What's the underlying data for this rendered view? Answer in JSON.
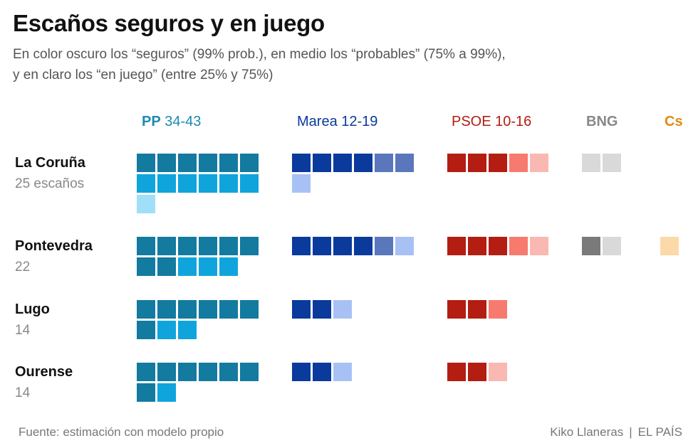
{
  "title": "Escaños seguros y en juego",
  "subtitle": {
    "line1": "En color oscuro los “seguros” (99% prob.), en medio los “probables” (75% a 99%),",
    "line2": "y en claro los “en juego” (entre 25% y 75%)"
  },
  "parties": [
    {
      "key": "pp",
      "name": "PP",
      "range": "34-43",
      "color": "#1e8bb0",
      "shades": {
        "seguro": "#137aa0",
        "probable": "#0fa5dc",
        "en_juego": "#9fdff8"
      }
    },
    {
      "key": "marea",
      "name": "Marea",
      "range": "12-19",
      "color": "#0a3a9c",
      "shades": {
        "seguro": "#0a3a9c",
        "probable": "#5a77bb",
        "en_juego": "#a8c1f5"
      }
    },
    {
      "key": "psoe",
      "name": "PSOE",
      "range": "10-16",
      "color": "#b31d12",
      "shades": {
        "seguro": "#b31d12",
        "probable": "#f77a6e",
        "en_juego": "#f9b8b1"
      }
    },
    {
      "key": "bng",
      "name": "BNG",
      "range": "",
      "color": "#888888",
      "shades": {
        "seguro": "#7a7a7a",
        "probable": "#a3a3a3",
        "en_juego": "#d9d9d9"
      }
    },
    {
      "key": "cs",
      "name": "Cs",
      "range": "",
      "color": "#e08a18",
      "shades": {
        "seguro": "#e08a18",
        "probable": "#f5b860",
        "en_juego": "#fbd9a8"
      }
    }
  ],
  "chart_data": {
    "type": "waffle",
    "categories_note": "seats per party per province, split by probability level",
    "levels": [
      "seguro",
      "probable",
      "en_juego"
    ],
    "regions": [
      {
        "name": "La Coruña",
        "seats_label": "25 escaños",
        "seats": 25,
        "parties": {
          "pp": [
            6,
            6,
            1
          ],
          "marea": [
            4,
            2,
            1
          ],
          "psoe": [
            3,
            1,
            1
          ],
          "bng": [
            0,
            0,
            2
          ],
          "cs": [
            0,
            0,
            0
          ]
        }
      },
      {
        "name": "Pontevedra",
        "seats_label": "22",
        "seats": 22,
        "parties": {
          "pp": [
            8,
            3,
            0
          ],
          "marea": [
            4,
            1,
            1
          ],
          "psoe": [
            3,
            1,
            1
          ],
          "bng": [
            1,
            0,
            1
          ],
          "cs": [
            0,
            0,
            1
          ]
        }
      },
      {
        "name": "Lugo",
        "seats_label": "14",
        "seats": 14,
        "parties": {
          "pp": [
            7,
            2,
            0
          ],
          "marea": [
            2,
            0,
            1
          ],
          "psoe": [
            2,
            1,
            0
          ],
          "bng": [
            0,
            0,
            0
          ],
          "cs": [
            0,
            0,
            0
          ]
        }
      },
      {
        "name": "Ourense",
        "seats_label": "14",
        "seats": 14,
        "parties": {
          "pp": [
            7,
            1,
            0
          ],
          "marea": [
            2,
            0,
            1
          ],
          "psoe": [
            2,
            0,
            1
          ],
          "bng": [
            0,
            0,
            0
          ],
          "cs": [
            0,
            0,
            0
          ]
        }
      }
    ]
  },
  "footer": {
    "source": "Fuente: estimación con modelo propio",
    "author": "Kiko Llaneras",
    "separator": "|",
    "outlet": "EL PAÍS"
  }
}
